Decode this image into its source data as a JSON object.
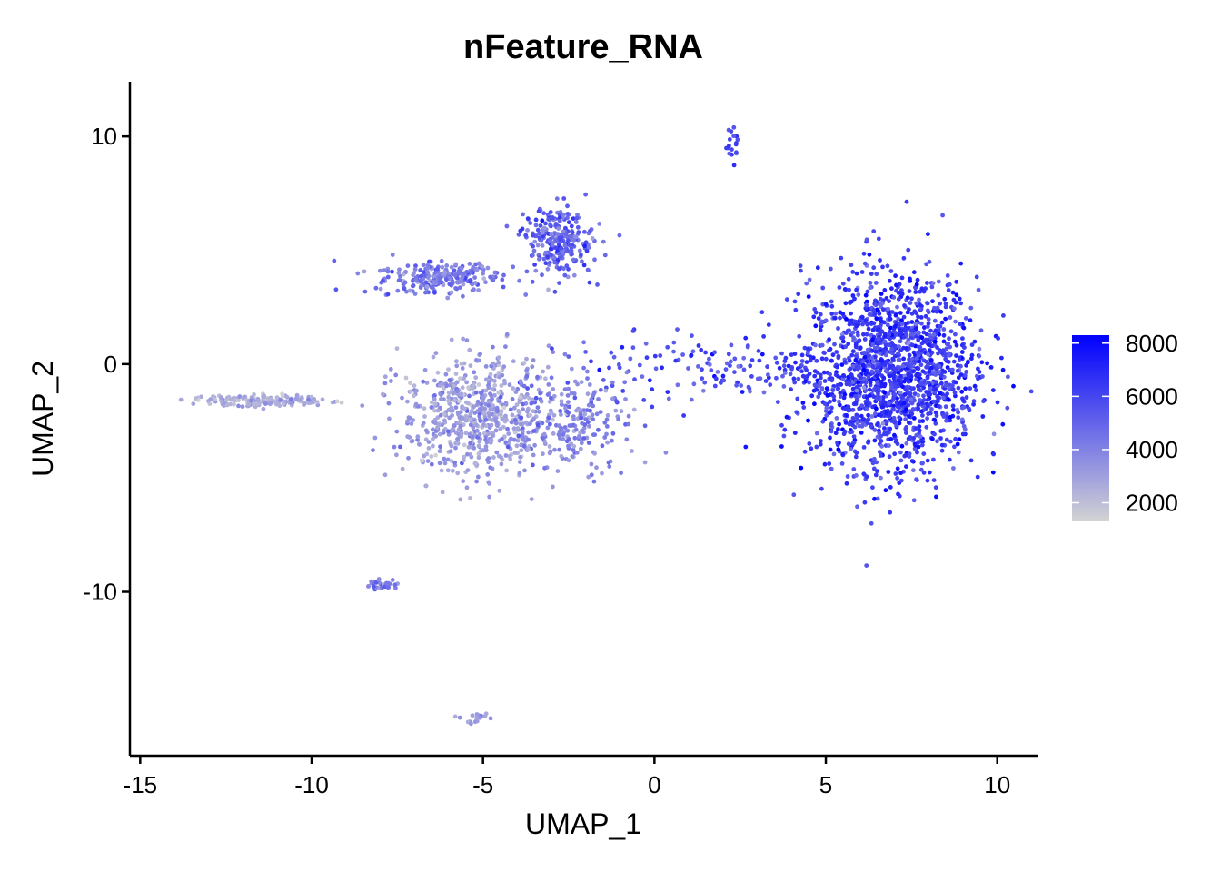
{
  "chart_data": {
    "type": "scatter",
    "title": "nFeature_RNA",
    "xlabel": "UMAP_1",
    "ylabel": "UMAP_2",
    "xlim": [
      -15.3,
      11.2
    ],
    "ylim": [
      -17.2,
      12.4
    ],
    "x_ticks": [
      -15,
      -10,
      -5,
      0,
      5,
      10
    ],
    "y_ticks": [
      -10,
      0,
      10
    ],
    "x_tick_labels": [
      "-15",
      "-10",
      "-5",
      "0",
      "5",
      "10"
    ],
    "y_tick_labels": [
      "-10",
      "0",
      "10"
    ],
    "grid": false,
    "color_scale": {
      "variable": "nFeature_RNA",
      "low_color": "#d3d3d3",
      "high_color": "#0000ff",
      "min": 1300,
      "max": 8300,
      "breaks": [
        8000,
        6000,
        4000,
        2000
      ],
      "break_labels": [
        "8000",
        "6000",
        "4000",
        "2000"
      ],
      "legend_position": "right"
    },
    "clusters": [
      {
        "label": "large right cluster",
        "cx": 6.9,
        "cy": -0.4,
        "sx": 1.25,
        "sy": 2.1,
        "n": 1700,
        "value_mean": 6300,
        "value_sd": 900
      },
      {
        "label": "bridge",
        "cx": 1.5,
        "cy": -0.2,
        "sx": 1.9,
        "sy": 0.7,
        "n": 130,
        "value_mean": 5600,
        "value_sd": 900
      },
      {
        "label": "central left cluster",
        "cx": -5.2,
        "cy": -2.3,
        "sx": 1.1,
        "sy": 1.3,
        "n": 650,
        "value_mean": 3100,
        "value_sd": 700
      },
      {
        "label": "central left extension",
        "cx": -2.4,
        "cy": -2.4,
        "sx": 0.9,
        "sy": 1.1,
        "n": 220,
        "value_mean": 3900,
        "value_sd": 800
      },
      {
        "label": "upper left arm",
        "cx": -6.3,
        "cy": 3.8,
        "sx": 0.9,
        "sy": 0.35,
        "n": 250,
        "value_mean": 4300,
        "value_sd": 800
      },
      {
        "label": "upper loop",
        "cx": -2.8,
        "cy": 5.4,
        "sx": 0.5,
        "sy": 0.75,
        "n": 260,
        "value_mean": 5000,
        "value_sd": 800
      },
      {
        "label": "top right blob",
        "cx": 2.3,
        "cy": 9.6,
        "sx": 0.15,
        "sy": 0.4,
        "n": 18,
        "value_mean": 5800,
        "value_sd": 600
      },
      {
        "label": "far left streak",
        "cx": -11.5,
        "cy": -1.6,
        "sx": 1.0,
        "sy": 0.12,
        "n": 170,
        "value_mean": 2600,
        "value_sd": 600
      },
      {
        "label": "bottom small streak",
        "cx": -7.9,
        "cy": -9.7,
        "sx": 0.25,
        "sy": 0.12,
        "n": 30,
        "value_mean": 4200,
        "value_sd": 800
      },
      {
        "label": "bottom tiny cluster",
        "cx": -5.2,
        "cy": -15.6,
        "sx": 0.2,
        "sy": 0.1,
        "n": 18,
        "value_mean": 3300,
        "value_sd": 500
      }
    ]
  }
}
